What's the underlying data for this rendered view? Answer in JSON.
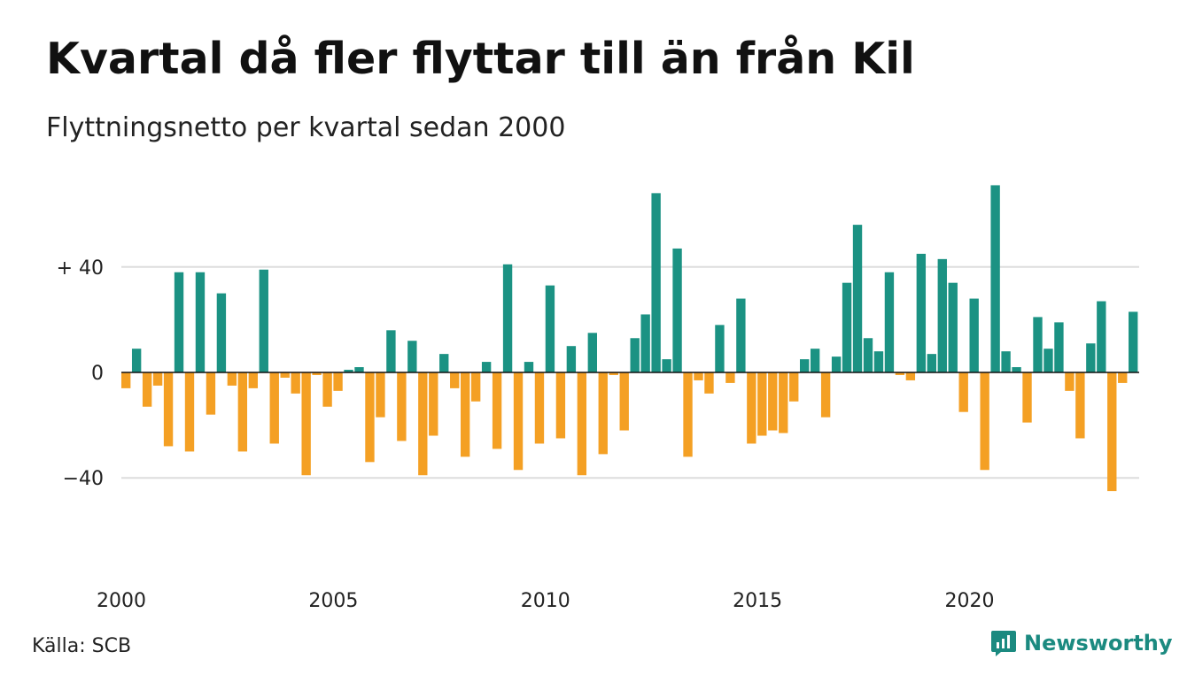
{
  "header": {
    "title": "Kvartal då fler flyttar till än från Kil",
    "subtitle": "Flyttningsnetto per kvartal sedan 2000"
  },
  "footer": {
    "source": "Källa: SCB",
    "brand": "Newsworthy",
    "brand_icon": "newsworthy-logo-icon"
  },
  "colors": {
    "positive": "#1b9283",
    "negative": "#f4a024",
    "grid": "#dddddd",
    "zero_line": "#111111"
  },
  "chart_data": {
    "type": "bar",
    "title": "Kvartal då fler flyttar till än från Kil",
    "subtitle": "Flyttningsnetto per kvartal sedan 2000",
    "xlabel": "",
    "ylabel": "",
    "start_year": 2000,
    "ylim": [
      -60,
      80
    ],
    "y_ticks": [
      {
        "value": 40,
        "label": "+ 40"
      },
      {
        "value": 0,
        "label": "0"
      },
      {
        "value": -40,
        "label": "−40"
      }
    ],
    "x_ticks": [
      "2000",
      "2005",
      "2010",
      "2015",
      "2020"
    ],
    "grid": true,
    "legend": "none",
    "values": [
      -6,
      9,
      -13,
      -5,
      -28,
      38,
      -30,
      38,
      -16,
      30,
      -5,
      -30,
      -6,
      39,
      -27,
      -2,
      -8,
      -39,
      -1,
      -13,
      -7,
      1,
      2,
      -34,
      -17,
      16,
      -26,
      12,
      -39,
      -24,
      7,
      -6,
      -32,
      -11,
      4,
      -29,
      41,
      -37,
      4,
      -27,
      33,
      -25,
      10,
      -39,
      15,
      -31,
      -1,
      -22,
      13,
      22,
      68,
      5,
      47,
      -32,
      -3,
      -8,
      18,
      -4,
      28,
      -27,
      -24,
      -22,
      -23,
      -11,
      5,
      9,
      -17,
      6,
      34,
      56,
      13,
      8,
      38,
      -1,
      -3,
      45,
      7,
      43,
      34,
      -15,
      28,
      -37,
      71,
      8,
      2,
      -19,
      21,
      9,
      19,
      -7,
      -25,
      11,
      27,
      -45,
      -4,
      23
    ]
  }
}
